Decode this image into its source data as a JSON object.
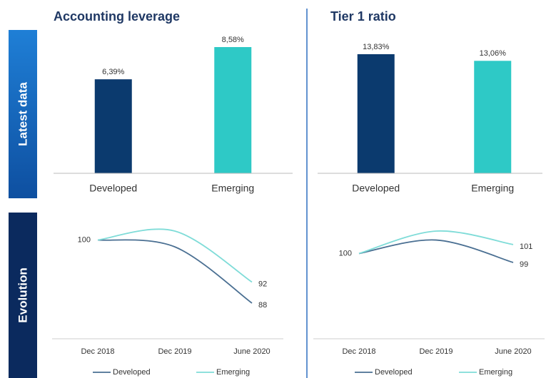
{
  "row_labels": [
    "Latest data",
    "Evolution"
  ],
  "chart_data": [
    {
      "type": "bar",
      "title": "Accounting leverage",
      "categories": [
        "Developed",
        "Emerging"
      ],
      "values": [
        6.39,
        8.58
      ],
      "value_labels": [
        "6,39%",
        "8,58%"
      ],
      "colors": [
        "#0b3a6e",
        "#2ec9c6"
      ]
    },
    {
      "type": "bar",
      "title": "Tier 1 ratio",
      "categories": [
        "Developed",
        "Emerging"
      ],
      "values": [
        13.83,
        13.06
      ],
      "value_labels": [
        "13,83%",
        "13,06%"
      ],
      "colors": [
        "#0b3a6e",
        "#2ec9c6"
      ]
    },
    {
      "type": "line",
      "categories": [
        "Dec 2018",
        "Dec 2019",
        "June 2020"
      ],
      "series": [
        {
          "name": "Developed",
          "color": "#4a6f92",
          "values": [
            100,
            98.7,
            88
          ]
        },
        {
          "name": "Emerging",
          "color": "#7fdcd8",
          "values": [
            100,
            101.7,
            92
          ]
        }
      ]
    },
    {
      "type": "line",
      "categories": [
        "Dec 2018",
        "Dec 2019",
        "June 2020"
      ],
      "series": [
        {
          "name": "Developed",
          "color": "#4a6f92",
          "values": [
            100,
            101.5,
            99
          ]
        },
        {
          "name": "Emerging",
          "color": "#7fdcd8",
          "values": [
            100,
            102.5,
            101
          ]
        }
      ]
    }
  ]
}
